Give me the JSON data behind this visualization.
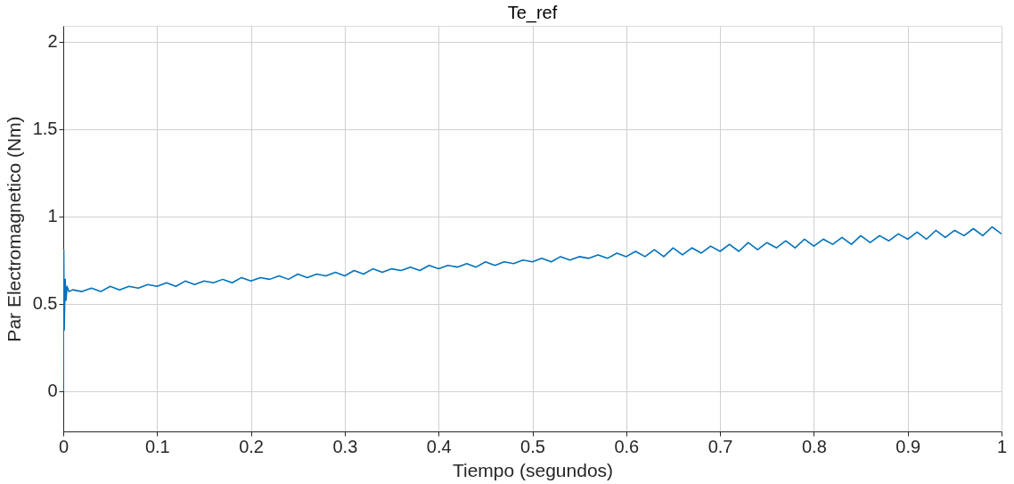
{
  "chart_data": {
    "type": "line",
    "title": "Te_ref",
    "xlabel": "Tiempo (segundos)",
    "ylabel": "Par Electromagnetico (Nm)",
    "xlim": [
      0,
      1
    ],
    "xticks": [
      0,
      0.1,
      0.2,
      0.3,
      0.4,
      0.5,
      0.6,
      0.7,
      0.8,
      0.9,
      1
    ],
    "ylim": [
      -0.23,
      2.09
    ],
    "yticks": [
      0,
      0.5,
      1,
      1.5,
      2
    ],
    "grid": true,
    "marker": "none",
    "line_style": "solid",
    "series": [
      {
        "color": "#0072bd",
        "x": [
          0,
          0.0005,
          0.001,
          0.002,
          0.003,
          0.004,
          0.006,
          0.01,
          0.02,
          0.03,
          0.04,
          0.05,
          0.06,
          0.07,
          0.08,
          0.09,
          0.1,
          0.11,
          0.12,
          0.13,
          0.14,
          0.15,
          0.16,
          0.17,
          0.18,
          0.19,
          0.2,
          0.21,
          0.22,
          0.23,
          0.24,
          0.25,
          0.26,
          0.27,
          0.28,
          0.29,
          0.3,
          0.31,
          0.32,
          0.33,
          0.34,
          0.35,
          0.36,
          0.37,
          0.38,
          0.39,
          0.4,
          0.41,
          0.42,
          0.43,
          0.44,
          0.45,
          0.46,
          0.47,
          0.48,
          0.49,
          0.5,
          0.51,
          0.52,
          0.53,
          0.54,
          0.55,
          0.56,
          0.57,
          0.58,
          0.59,
          0.6,
          0.61,
          0.62,
          0.63,
          0.64,
          0.65,
          0.66,
          0.67,
          0.68,
          0.69,
          0.7,
          0.71,
          0.72,
          0.73,
          0.74,
          0.75,
          0.76,
          0.77,
          0.78,
          0.79,
          0.8,
          0.81,
          0.82,
          0.83,
          0.84,
          0.85,
          0.86,
          0.87,
          0.88,
          0.89,
          0.9,
          0.91,
          0.92,
          0.93,
          0.94,
          0.95,
          0.96,
          0.97,
          0.98,
          0.99,
          1
        ],
        "values": [
          0,
          0.81,
          0.35,
          0.64,
          0.52,
          0.6,
          0.57,
          0.58,
          0.57,
          0.59,
          0.57,
          0.6,
          0.58,
          0.6,
          0.59,
          0.61,
          0.6,
          0.62,
          0.6,
          0.63,
          0.61,
          0.63,
          0.62,
          0.64,
          0.62,
          0.65,
          0.63,
          0.65,
          0.64,
          0.66,
          0.64,
          0.67,
          0.65,
          0.67,
          0.66,
          0.68,
          0.66,
          0.69,
          0.67,
          0.7,
          0.68,
          0.7,
          0.69,
          0.71,
          0.69,
          0.72,
          0.7,
          0.72,
          0.71,
          0.73,
          0.71,
          0.74,
          0.72,
          0.74,
          0.73,
          0.75,
          0.74,
          0.76,
          0.74,
          0.77,
          0.75,
          0.77,
          0.76,
          0.78,
          0.76,
          0.79,
          0.77,
          0.8,
          0.77,
          0.81,
          0.77,
          0.82,
          0.78,
          0.82,
          0.79,
          0.83,
          0.8,
          0.84,
          0.8,
          0.85,
          0.81,
          0.85,
          0.82,
          0.86,
          0.82,
          0.87,
          0.83,
          0.87,
          0.84,
          0.88,
          0.84,
          0.89,
          0.85,
          0.89,
          0.86,
          0.9,
          0.87,
          0.91,
          0.87,
          0.92,
          0.88,
          0.92,
          0.89,
          0.93,
          0.89,
          0.94,
          0.9
        ]
      }
    ]
  }
}
